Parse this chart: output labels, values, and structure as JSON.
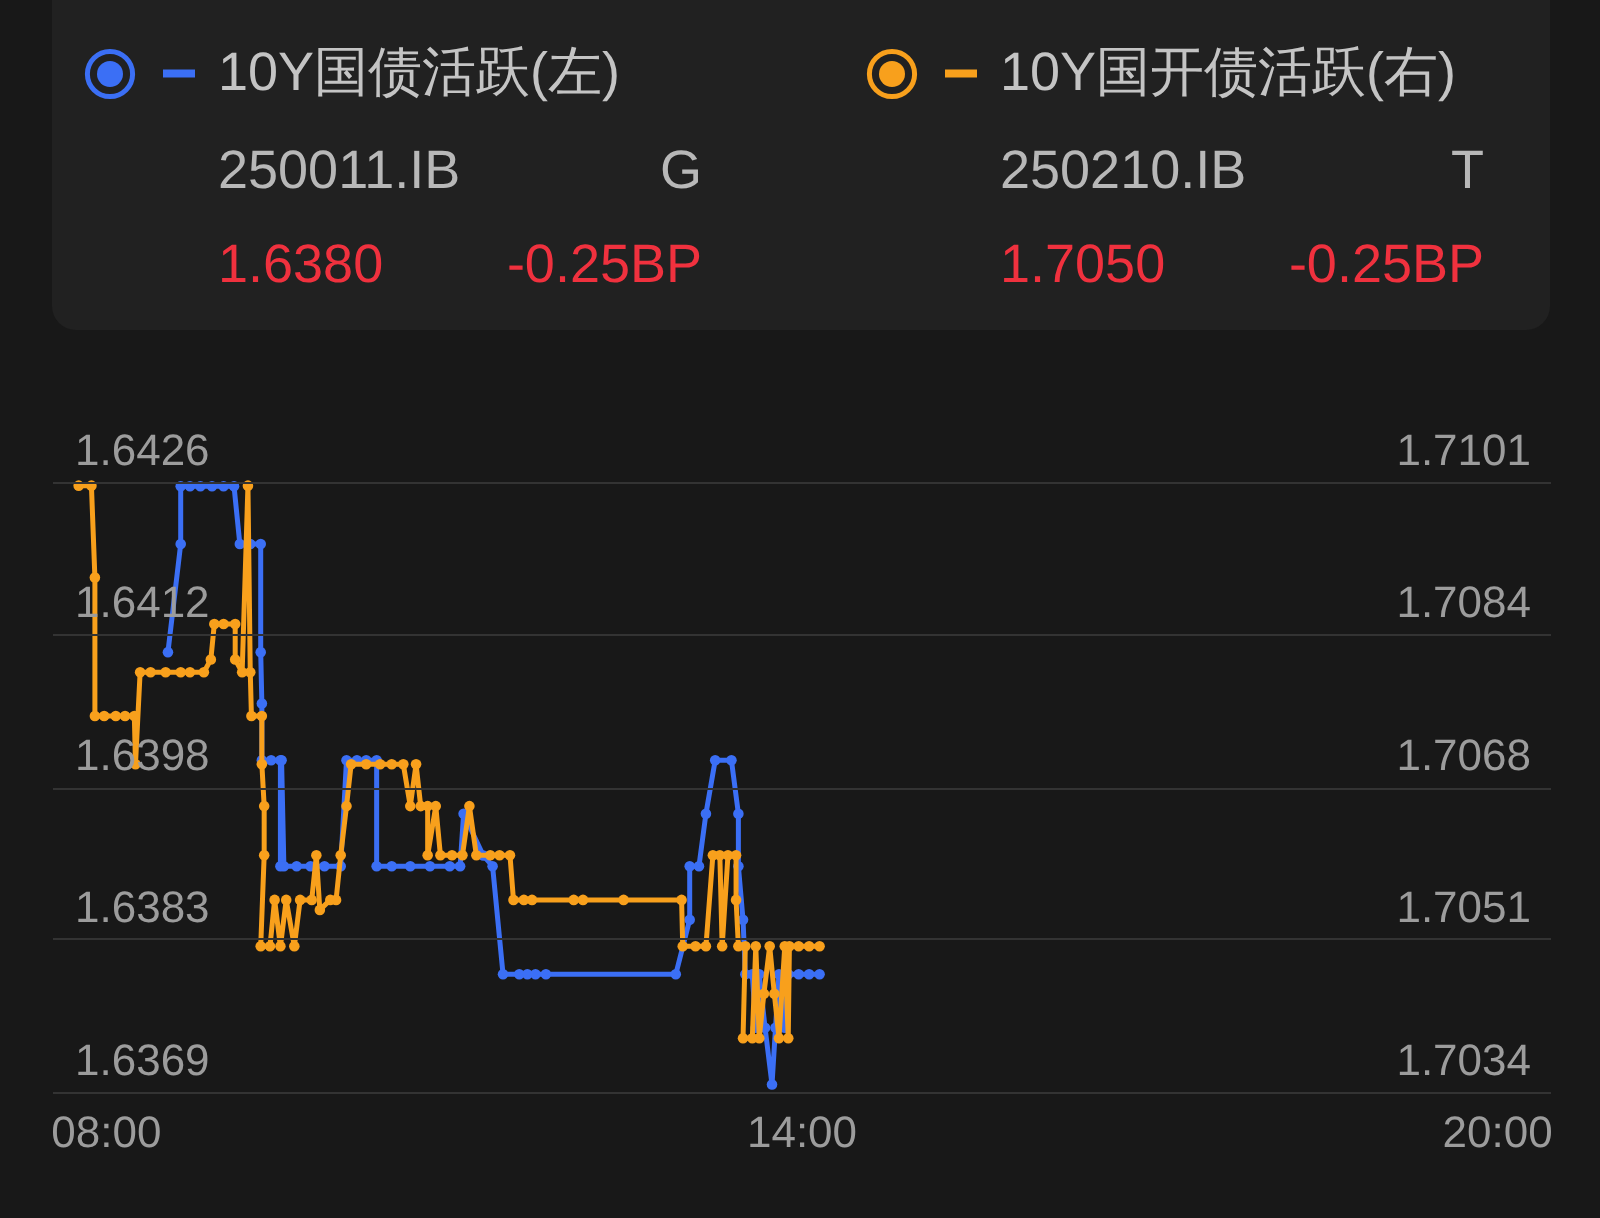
{
  "chart_data": {
    "type": "line",
    "xlim": [
      7.54,
      20.46
    ],
    "xticks": [
      {
        "value": 8,
        "label": "08:00"
      },
      {
        "value": 14,
        "label": "14:00"
      },
      {
        "value": 20,
        "label": "20:00"
      }
    ],
    "ylim": [
      1.6369,
      1.6426
    ],
    "yticks": [
      1.6369,
      {
        "value": 1.63833,
        "label": "1.6383"
      },
      {
        "value": 1.63975,
        "label": "1.6398"
      },
      {
        "value": 1.64118,
        "label": "1.6412"
      },
      1.6426
    ],
    "y2lim": [
      1.7034,
      1.7101
    ],
    "y2ticks": [
      1.7034,
      {
        "value": 1.70508,
        "label": "1.7051"
      },
      {
        "value": 1.70675,
        "label": "1.7068"
      },
      {
        "value": 1.70843,
        "label": "1.7084"
      },
      1.7101
    ],
    "grid": "y",
    "legend": "top",
    "marker": "circle",
    "line_style": "solid",
    "annotations": [
      "250011.IB",
      "G",
      "1.6380",
      "-0.25BP",
      "250210.IB",
      "T",
      "1.7050",
      "-0.25BP"
    ],
    "series": [
      {
        "name": "10Y国债活跃(左)",
        "color": "#3b6ff5",
        "x": [
          8.54,
          8.65,
          8.65,
          8.73,
          8.82,
          8.92,
          9.02,
          9.11,
          9.16,
          9.25,
          9.34,
          9.34,
          9.35,
          9.35,
          9.43,
          9.51,
          9.51,
          9.52,
          9.54,
          9.65,
          9.77,
          9.89,
          10.03,
          10.08,
          10.17,
          10.25,
          10.34,
          10.34,
          10.47,
          10.63,
          10.8,
          10.97,
          11.06,
          11.09,
          11.26,
          11.34,
          11.43,
          11.57,
          11.64,
          11.71,
          11.8,
          12.92,
          13.04,
          13.04,
          13.12,
          13.18,
          13.26,
          13.4,
          13.46,
          13.46,
          13.5,
          13.52,
          13.58,
          13.61,
          13.64,
          13.69,
          13.75,
          13.78,
          13.81,
          13.86,
          13.89,
          13.98,
          14.07,
          14.16
        ],
        "values": [
          1.64101,
          1.64202,
          1.64256,
          1.64256,
          1.64256,
          1.64256,
          1.64256,
          1.64256,
          1.64202,
          1.64202,
          1.64202,
          1.64101,
          1.64053,
          1.64,
          1.64,
          1.64,
          1.63901,
          1.64,
          1.63901,
          1.63901,
          1.63901,
          1.63901,
          1.63901,
          1.64,
          1.64,
          1.64,
          1.64,
          1.63901,
          1.63901,
          1.63901,
          1.63901,
          1.63901,
          1.63901,
          1.6395,
          1.63911,
          1.63901,
          1.638,
          1.638,
          1.638,
          1.638,
          1.638,
          1.638,
          1.63851,
          1.63901,
          1.63901,
          1.6395,
          1.64,
          1.64,
          1.6395,
          1.63901,
          1.63851,
          1.638,
          1.638,
          1.6375,
          1.638,
          1.6375,
          1.63697,
          1.6375,
          1.638,
          1.6375,
          1.638,
          1.638,
          1.638,
          1.638
        ]
      },
      {
        "name": "10Y国开债活跃(右)",
        "color": "#f8a01c",
        "axis": "y2",
        "x": [
          7.77,
          7.88,
          7.91,
          7.91,
          7.99,
          8.09,
          8.17,
          8.25,
          8.26,
          8.3,
          8.39,
          8.52,
          8.65,
          8.73,
          8.85,
          8.91,
          8.94,
          9.02,
          9.12,
          9.12,
          9.18,
          9.23,
          9.25,
          9.26,
          9.35,
          9.35,
          9.37,
          9.37,
          9.34,
          9.42,
          9.46,
          9.51,
          9.56,
          9.63,
          9.68,
          9.78,
          9.82,
          9.85,
          9.94,
          9.99,
          10.03,
          10.08,
          10.12,
          10.25,
          10.37,
          10.47,
          10.57,
          10.63,
          10.68,
          10.72,
          10.78,
          10.78,
          10.85,
          10.89,
          10.99,
          11.08,
          11.14,
          11.2,
          11.32,
          11.4,
          11.49,
          11.52,
          11.61,
          11.68,
          12.04,
          12.12,
          12.47,
          12.97,
          12.98,
          13.09,
          13.18,
          13.24,
          13.3,
          13.32,
          13.37,
          13.44,
          13.44,
          13.46,
          13.52,
          13.5,
          13.58,
          13.61,
          13.64,
          13.68,
          13.73,
          13.77,
          13.81,
          13.86,
          13.89,
          13.9,
          13.98,
          14.07,
          14.16
        ],
        "values": [
          1.71006,
          1.71006,
          1.70905,
          1.70753,
          1.70753,
          1.70753,
          1.70753,
          1.70753,
          1.707,
          1.70801,
          1.70801,
          1.70801,
          1.70801,
          1.70801,
          1.70801,
          1.70815,
          1.70854,
          1.70854,
          1.70854,
          1.70815,
          1.70801,
          1.71006,
          1.70801,
          1.70753,
          1.70753,
          1.707,
          1.70654,
          1.706,
          1.705,
          1.705,
          1.70551,
          1.705,
          1.70551,
          1.705,
          1.70551,
          1.70551,
          1.706,
          1.7054,
          1.70551,
          1.70551,
          1.706,
          1.70654,
          1.707,
          1.707,
          1.707,
          1.707,
          1.707,
          1.70654,
          1.707,
          1.70654,
          1.70654,
          1.706,
          1.70654,
          1.706,
          1.706,
          1.706,
          1.70654,
          1.706,
          1.706,
          1.706,
          1.706,
          1.70551,
          1.70551,
          1.70551,
          1.70551,
          1.70551,
          1.70551,
          1.70551,
          1.705,
          1.705,
          1.705,
          1.706,
          1.706,
          1.705,
          1.706,
          1.706,
          1.70551,
          1.705,
          1.705,
          1.70399,
          1.70399,
          1.705,
          1.70399,
          1.70448,
          1.705,
          1.70448,
          1.70399,
          1.705,
          1.70399,
          1.705,
          1.705,
          1.705,
          1.705
        ]
      }
    ]
  }
}
